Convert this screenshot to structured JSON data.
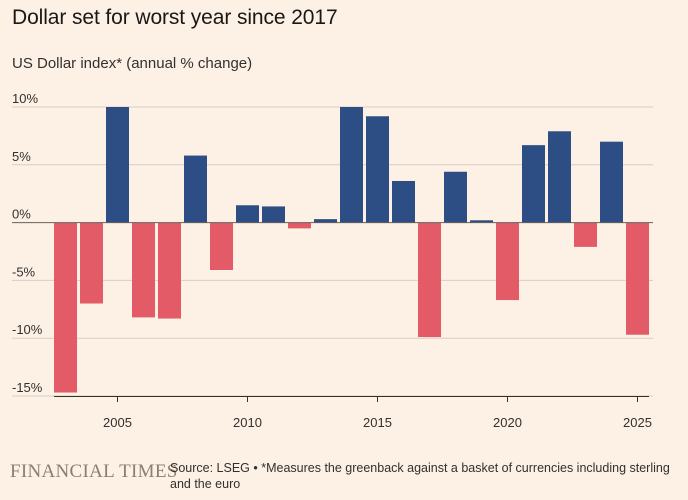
{
  "header": {
    "title": "Dollar set for worst year since 2017",
    "subtitle": "US Dollar index* (annual % change)"
  },
  "footer": {
    "brand": "FINANCIAL TIMES",
    "source": "Source: LSEG • *Measures the greenback against a basket of currencies including sterling and the euro"
  },
  "colors": {
    "positive": "#2c4e84",
    "negative": "#e35b67",
    "gridline": "#d9cdc3",
    "zero_line": "#66605c",
    "background": "#fdf1e5"
  },
  "chart_data": {
    "type": "bar",
    "title": "Dollar set for worst year since 2017",
    "ylabel": "US Dollar index* (annual % change)",
    "xlabel": "",
    "categories": [
      2003,
      2004,
      2005,
      2006,
      2007,
      2008,
      2009,
      2010,
      2011,
      2012,
      2013,
      2014,
      2015,
      2016,
      2017,
      2018,
      2019,
      2020,
      2021,
      2022,
      2023,
      2024,
      2025
    ],
    "values": [
      -14.7,
      -7.0,
      10.0,
      -8.2,
      -8.3,
      5.8,
      -4.1,
      1.5,
      1.4,
      -0.5,
      0.3,
      10.0,
      9.2,
      3.6,
      -9.9,
      4.4,
      0.2,
      -6.7,
      6.7,
      7.9,
      -2.1,
      7.0,
      -9.7
    ],
    "ylim": [
      -15,
      10
    ],
    "yticks": [
      10,
      5,
      0,
      -5,
      -10,
      -15
    ],
    "ytick_labels": [
      "10%",
      "5%",
      "0%",
      "-5%",
      "-10%",
      "-15%"
    ],
    "xticks": [
      2005,
      2010,
      2015,
      2020,
      2025
    ],
    "xtick_labels": [
      "2005",
      "2010",
      "2015",
      "2020",
      "2025"
    ],
    "grid": true,
    "legend": "none"
  }
}
